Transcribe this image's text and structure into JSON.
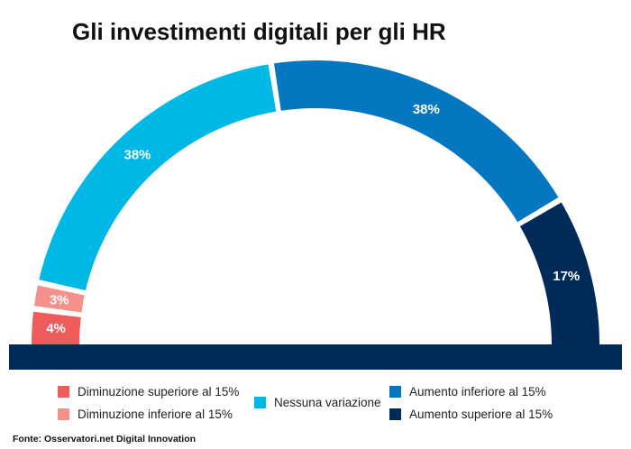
{
  "title": "Gli investimenti digitali per gli HR",
  "source": "Fonte: Osservatori.net Digital Innovation",
  "chart_data": {
    "type": "pie",
    "variant": "semicircle-donut",
    "slices": [
      {
        "name": "Diminuzione superiore al 15%",
        "value": 4,
        "label": "4%",
        "color": "#ef5b5b"
      },
      {
        "name": "Diminuzione inferiore al 15%",
        "value": 3,
        "label": "3%",
        "color": "#f4918a"
      },
      {
        "name": "Nessuna variazione",
        "value": 38,
        "label": "38%",
        "color": "#00b8e6"
      },
      {
        "name": "Aumento inferiore al 15%",
        "value": 38,
        "label": "38%",
        "color": "#0577c0"
      },
      {
        "name": "Aumento superiore al 15%",
        "value": 17,
        "label": "17%",
        "color": "#002a57"
      }
    ],
    "legend_position": "bottom",
    "base_color": "#002a57"
  }
}
